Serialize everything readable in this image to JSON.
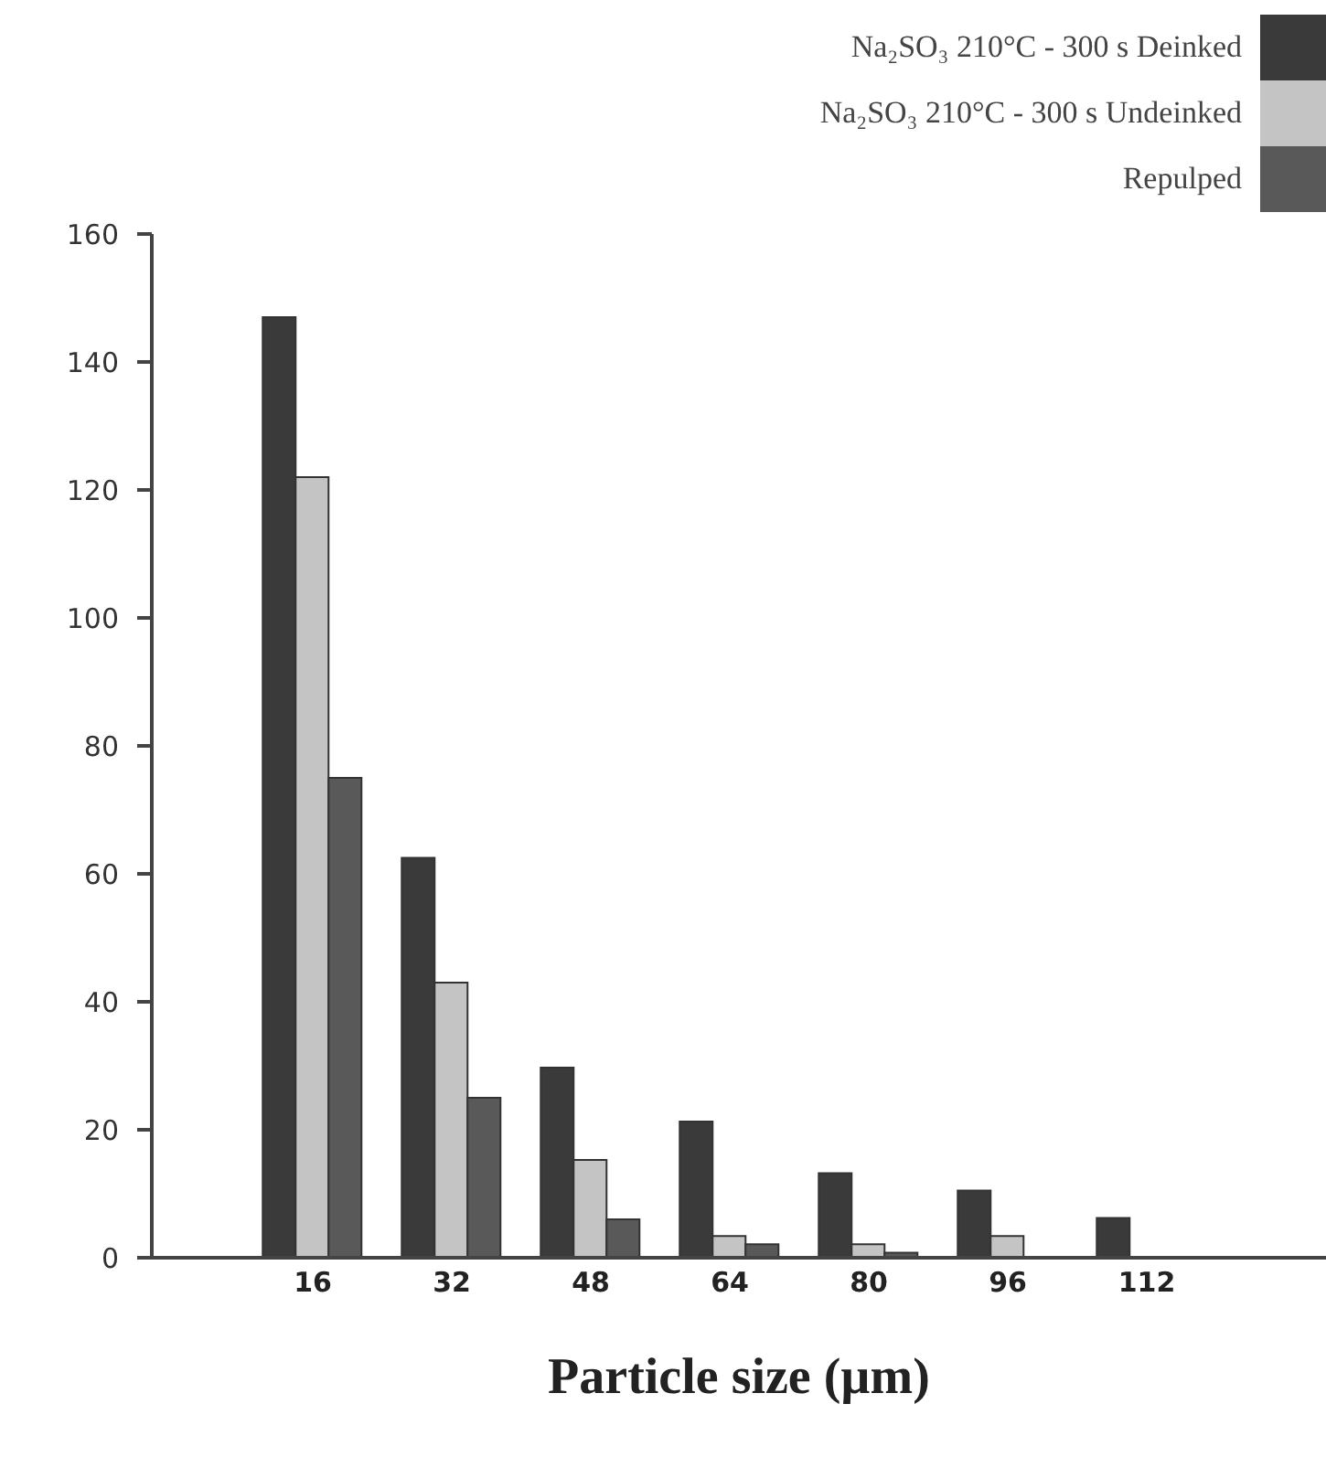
{
  "chart_data": {
    "type": "bar",
    "xlabel": "Particle size (µm)",
    "categories": [
      "16",
      "32",
      "48",
      "64",
      "80",
      "96",
      "112"
    ],
    "series": [
      {
        "name": "Na₂SO₃ 210°C - 300 s Deinked",
        "color": "#3a3a3a",
        "values": [
          147,
          62.5,
          29.7,
          21.3,
          13.2,
          10.5,
          6.2
        ]
      },
      {
        "name": "Na₂SO₃ 210°C - 300 s Undeinked",
        "color": "#c4c4c4",
        "values": [
          122,
          43,
          15.3,
          3.4,
          2.1,
          3.4,
          null
        ]
      },
      {
        "name": "Repulped",
        "color": "#595959",
        "values": [
          75,
          25,
          6,
          2.1,
          0.8,
          null,
          null
        ]
      }
    ],
    "ylim": [
      0,
      160
    ],
    "yticks": [
      0,
      20,
      40,
      60,
      80,
      100,
      120,
      140,
      160
    ],
    "grid": false,
    "legend": "top right"
  }
}
